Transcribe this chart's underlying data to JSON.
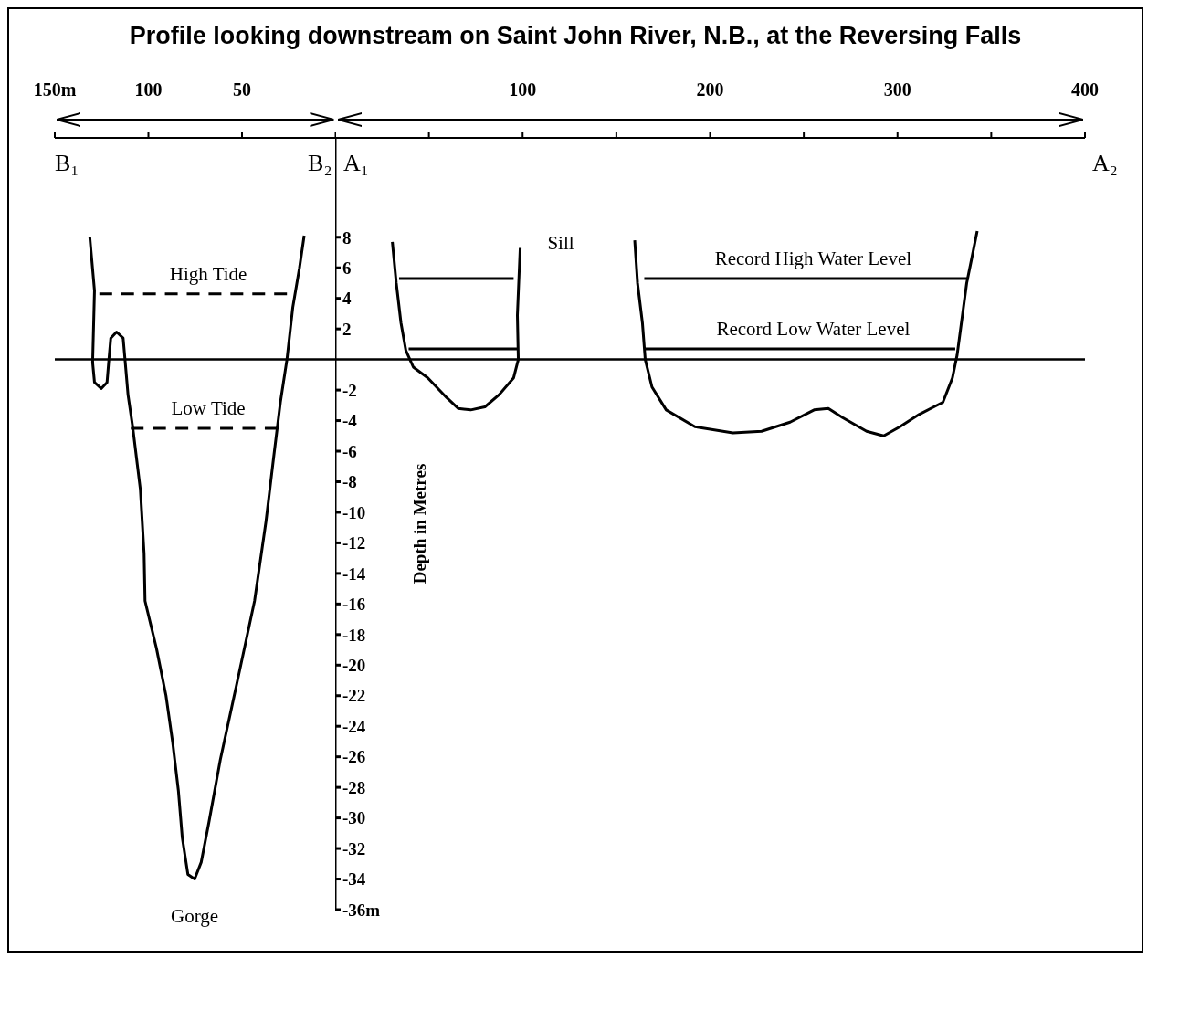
{
  "chart_data": [
    {
      "type": "line",
      "title": "Profile looking downstream on Saint John River, N.B., at the Reversing Falls",
      "xlim": [
        150,
        0
      ],
      "xticks": [
        {
          "value": 150,
          "label": "150m"
        },
        100,
        50,
        {
          "value": 0,
          "label": null
        }
      ],
      "ylim": [
        -36,
        14.5
      ],
      "tick_labels": "x",
      "series": [
        {
          "color": "#000000",
          "x": [
            131.3,
            128.8,
            129.8,
            128.8,
            125.2,
            122.1,
            121.1,
            120.1,
            117,
            113.5,
            112.5,
            110.9,
            108.4,
            104.3,
            102.3,
            101.8,
            95.7,
            90.6,
            87,
            84,
            81.9,
            78.9,
            75.3,
            71.8,
            67.7,
            61.6,
            52.4,
            43.3,
            37.2,
            33.1,
            29.5,
            26,
            22.9,
            19.3,
            16.8
          ],
          "values": [
            8,
            4.5,
            -0.2,
            -1.5,
            -1.9,
            -1.5,
            0,
            1.4,
            1.8,
            1.4,
            0,
            -2.3,
            -4.4,
            -8.5,
            -12.7,
            -15.8,
            -18.9,
            -22,
            -25.1,
            -28.2,
            -31.3,
            -33.7,
            -34,
            -32.9,
            -30.3,
            -26.2,
            -21,
            -15.8,
            -10.6,
            -6.4,
            -2.8,
            0,
            3.4,
            6,
            8.1
          ]
        },
        {
          "color": "#000000",
          "line_style": "dashed",
          "x": [
            126.2,
            26
          ],
          "values": [
            4.3,
            4.3
          ]
        },
        {
          "color": "#000000",
          "line_style": "dashed",
          "x": [
            109.4,
            31
          ],
          "values": [
            -4.5,
            -4.5
          ]
        }
      ],
      "ref_lines": [
        {
          "axis": "y",
          "value": 0,
          "color": "#000000"
        }
      ],
      "annotations": [
        "B₁",
        "B₂",
        {
          "text": "High Tide",
          "x": 68,
          "y": 4.3
        },
        {
          "text": "Low Tide",
          "x": 68,
          "y": -4.5
        },
        {
          "text": "Gorge",
          "x": 75.3,
          "y": -34
        }
      ]
    },
    {
      "type": "line",
      "ylabel": "Depth in Metres",
      "xlim": [
        0,
        400
      ],
      "xticks": [
        {
          "value": 0,
          "label": null
        },
        {
          "value": 50,
          "label": null
        },
        100,
        {
          "value": 150,
          "label": null
        },
        200,
        {
          "value": 250,
          "label": null
        },
        300,
        {
          "value": 350,
          "label": null
        },
        400
      ],
      "ylim": [
        -36,
        14.5
      ],
      "yticks": [
        8,
        6,
        4,
        2,
        -2,
        -4,
        -6,
        -8,
        -10,
        -12,
        -14,
        -16,
        -18,
        -20,
        -22,
        -24,
        -26,
        -28,
        -30,
        -32,
        -34,
        {
          "value": -36,
          "label": "-36m"
        }
      ],
      "series": [
        {
          "color": "#000000",
          "x": [
            30.5,
            32.6,
            35.1,
            37.7,
            41.7,
            49.4,
            59.5,
            65.6,
            72.3,
            79.9,
            87.5,
            95.2,
            97.7,
            97.2,
            98.7
          ],
          "values": [
            7.7,
            5,
            2.4,
            0.6,
            -0.5,
            -1.2,
            -2.5,
            -3.2,
            -3.3,
            -3.1,
            -2.3,
            -1.2,
            0,
            2.9,
            7.3
          ]
        },
        {
          "color": "#000000",
          "x": [
            159.8,
            161.3,
            163.9,
            165.4,
            169,
            176.6,
            191.9,
            212.2,
            227.5,
            242.7,
            255.5,
            263.1,
            270.7,
            283.5,
            292.6,
            301.3,
            311.5,
            324.2,
            329.3,
            331.8,
            336.9,
            339.4,
            342.5
          ],
          "values": [
            7.8,
            5,
            2.4,
            0,
            -1.8,
            -3.3,
            -4.4,
            -4.8,
            -4.7,
            -4.1,
            -3.3,
            -3.2,
            -3.8,
            -4.7,
            -5,
            -4.4,
            -3.6,
            -2.8,
            -1.2,
            0.3,
            5,
            6.5,
            8.4
          ]
        },
        {
          "color": "#000000",
          "x": [
            34.1,
            95.2
          ],
          "values": [
            5.3,
            5.3
          ]
        },
        {
          "color": "#000000",
          "x": [
            164.9,
            337.9
          ],
          "values": [
            5.3,
            5.3
          ]
        },
        {
          "color": "#000000",
          "x": [
            39.2,
            97.7
          ],
          "values": [
            0.7,
            0.7
          ]
        },
        {
          "color": "#000000",
          "x": [
            165.4,
            330.8
          ],
          "values": [
            0.7,
            0.7
          ]
        }
      ],
      "ref_lines": [
        {
          "axis": "y",
          "value": 0,
          "color": "#000000"
        }
      ],
      "annotations": [
        "A₁",
        "A₂",
        "Sill",
        {
          "text": "Record High Water Level",
          "x": 255,
          "y": 5.3
        },
        {
          "text": "Record Low Water Level",
          "x": 255,
          "y": 0.7
        }
      ]
    }
  ]
}
